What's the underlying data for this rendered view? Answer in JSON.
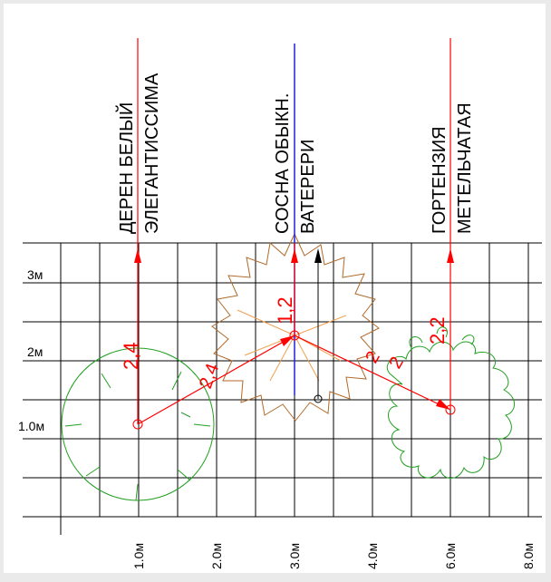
{
  "plants": [
    {
      "label_line1": "ДЕРЕН БЕЛЫЙ",
      "label_line2": "ЭЛЕГАНТИССИМА",
      "count": "2,4"
    },
    {
      "label_line1": "СОСНА ОБЫКН.",
      "label_line2": "ВАТЕРЕРИ",
      "count": "1,2"
    },
    {
      "label_line1": "ГОРТЕНЗИЯ",
      "label_line2": "МЕТЕЛЬЧАТАЯ",
      "count": "2,2"
    }
  ],
  "y_axis_labels": [
    "3м",
    "2м",
    "1.0м"
  ],
  "x_axis_labels": [
    "1.0м",
    "2.0м",
    "3.0м",
    "4.0м",
    "6.0м",
    "8.0м"
  ],
  "line_annotations": [
    "2,4",
    "2",
    "2"
  ],
  "colors": {
    "background": "#ffffff",
    "frame": "#eaeaea",
    "grid": "#000000",
    "leader": "#ff0000",
    "shrub_outline": "#22a022",
    "pine_outline": "#b06a2a",
    "pine_accent": "#f0a050",
    "pine_axis": "#2020e0"
  }
}
